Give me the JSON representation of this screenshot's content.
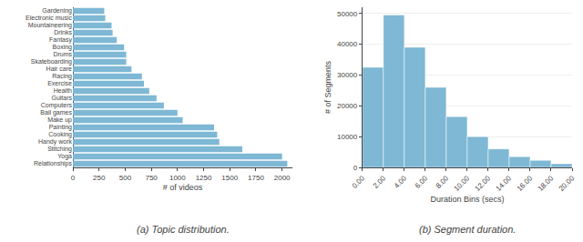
{
  "chart_data": [
    {
      "type": "bar",
      "orientation": "horizontal",
      "title": "(a) Topic distribution.",
      "categories": [
        "Relationships",
        "Yoga",
        "Stitching",
        "Handy work",
        "Cooking",
        "Painting",
        "Make up",
        "Ball games",
        "Computers",
        "Guitars",
        "Health",
        "Exercise",
        "Racing",
        "Hair care",
        "Skateboarding",
        "Drums",
        "Boxing",
        "Fantasy",
        "Drinks",
        "Mountaineering",
        "Electronic music",
        "Gardening"
      ],
      "values": [
        2050,
        2000,
        1620,
        1400,
        1380,
        1350,
        1050,
        1000,
        870,
        800,
        730,
        680,
        660,
        560,
        510,
        510,
        490,
        420,
        380,
        370,
        310,
        300
      ],
      "color": "#7EB8D4",
      "xlabel": "# of videos",
      "xlim": [
        0,
        2100
      ],
      "xticks": [
        0,
        250,
        500,
        750,
        1000,
        1250,
        1500,
        1750,
        2000
      ],
      "grid": false
    },
    {
      "type": "histogram",
      "title": "(b) Segment duration.",
      "bins": [
        0.0,
        2.0,
        4.0,
        6.0,
        8.0,
        10.0,
        12.0,
        14.0,
        16.0,
        18.0,
        20.0
      ],
      "values": [
        32500,
        49500,
        39000,
        26000,
        16500,
        10000,
        6000,
        3500,
        2300,
        1200
      ],
      "color": "#7EB8D4",
      "xlabel": "Duration Bins (secs)",
      "ylabel": "# of Segments",
      "xlim": [
        0,
        20
      ],
      "xticks": [
        {
          "value": 0,
          "label": "0.00"
        },
        {
          "value": 2,
          "label": "2.00"
        },
        {
          "value": 4,
          "label": "4.00"
        },
        {
          "value": 6,
          "label": "6.00"
        },
        {
          "value": 8,
          "label": "8.00"
        },
        {
          "value": 10,
          "label": "10.00"
        },
        {
          "value": 12,
          "label": "12.00"
        },
        {
          "value": 14,
          "label": "14.00"
        },
        {
          "value": 16,
          "label": "16.00"
        },
        {
          "value": 18,
          "label": "18.00"
        },
        {
          "value": 20,
          "label": "20.00"
        }
      ],
      "ylim": [
        0,
        52000
      ],
      "yticks": [
        0,
        10000,
        20000,
        30000,
        40000,
        50000
      ],
      "grid": true
    }
  ]
}
